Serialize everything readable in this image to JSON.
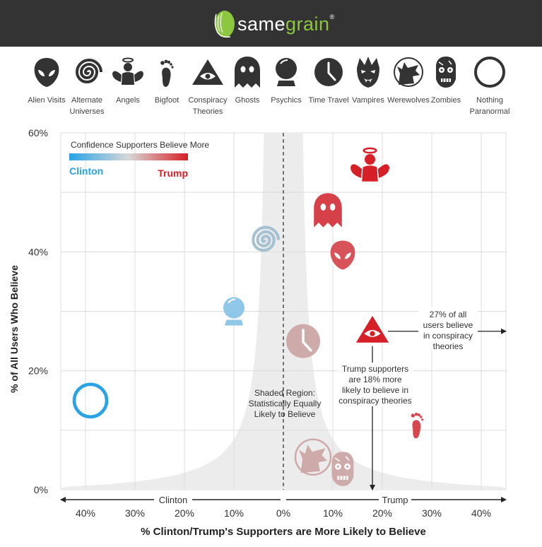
{
  "brand": {
    "same": "same",
    "grain": "grain",
    "mark": "®"
  },
  "colors": {
    "clinton": "#29a3e6",
    "trump": "#d61f26",
    "neutral": "#c9b4b4",
    "header": "#333333",
    "logo_green": "#8dc63f"
  },
  "legend": [
    {
      "label": [
        "Alien Visits"
      ],
      "icon": "alien-icon"
    },
    {
      "label": [
        "Alternate",
        "Universes"
      ],
      "icon": "spiral-icon"
    },
    {
      "label": [
        "Angels"
      ],
      "icon": "angel-icon"
    },
    {
      "label": [
        "Bigfoot"
      ],
      "icon": "footprint-icon"
    },
    {
      "label": [
        "Conspiracy",
        "Theories"
      ],
      "icon": "eye-pyramid-icon"
    },
    {
      "label": [
        "Ghosts"
      ],
      "icon": "ghost-icon"
    },
    {
      "label": [
        "Psychics"
      ],
      "icon": "crystal-ball-icon"
    },
    {
      "label": [
        "Time Travel"
      ],
      "icon": "clock-icon"
    },
    {
      "label": [
        "Vampires"
      ],
      "icon": "vampire-icon"
    },
    {
      "label": [
        "Werewolves"
      ],
      "icon": "werewolf-icon"
    },
    {
      "label": [
        "Zombies"
      ],
      "icon": "zombie-icon"
    },
    {
      "label": [
        "Nothing",
        "Paranormal"
      ],
      "icon": "ring-icon"
    }
  ],
  "chart_data": {
    "type": "scatter",
    "xlabel": "% Clinton/Trump's Supporters are More Likely to Believe",
    "ylabel": "% of All Users Who Believe",
    "xlim": [
      -45,
      45
    ],
    "ylim": [
      0,
      60
    ],
    "x_ticks": [
      "40%",
      "30%",
      "20%",
      "10%",
      "0%",
      "10%",
      "20%",
      "30%",
      "40%"
    ],
    "x_tick_values": [
      -40,
      -30,
      -20,
      -10,
      0,
      10,
      20,
      30,
      40
    ],
    "y_ticks": [
      "0%",
      "20%",
      "40%",
      "60%"
    ],
    "y_tick_values": [
      0,
      20,
      40,
      60
    ],
    "grid": true,
    "clinton_side_label": "Clinton",
    "trump_side_label": "Trump",
    "color_legend": {
      "title": "Confidence Supporters Believe More",
      "left": "Clinton",
      "right": "Trump",
      "placement": "top-left"
    },
    "points": [
      {
        "name": "Angels",
        "x": 17.5,
        "y": 54.5,
        "color": "#d61f26",
        "icon": "angel-icon"
      },
      {
        "name": "Ghosts",
        "x": 9,
        "y": 47,
        "color": "#d64048",
        "icon": "ghost-icon"
      },
      {
        "name": "Alien Visits",
        "x": 12,
        "y": 39.5,
        "color": "#d8525a",
        "icon": "alien-icon"
      },
      {
        "name": "Alternate Universes",
        "x": -4,
        "y": 42,
        "color": "#a6c2d2",
        "icon": "spiral-icon"
      },
      {
        "name": "Psychics",
        "x": -10,
        "y": 30,
        "color": "#8fc7e8",
        "icon": "crystal-ball-icon"
      },
      {
        "name": "Time Travel",
        "x": 4,
        "y": 25,
        "color": "#cfaaaa",
        "icon": "clock-icon"
      },
      {
        "name": "Conspiracy Theories",
        "x": 18,
        "y": 27,
        "color": "#d61f26",
        "icon": "eye-pyramid-icon"
      },
      {
        "name": "Bigfoot",
        "x": 27,
        "y": 11,
        "color": "#d6474e",
        "icon": "footprint-icon"
      },
      {
        "name": "Werewolves",
        "x": 6,
        "y": 5.5,
        "color": "#cfaaaa",
        "icon": "werewolf-icon"
      },
      {
        "name": "Zombies",
        "x": 12,
        "y": 3.5,
        "color": "#cfaaaa",
        "icon": "zombie-icon"
      },
      {
        "name": "Nothing Paranormal",
        "x": -39,
        "y": 15,
        "color": "#29a3e6",
        "icon": "ring-icon"
      }
    ],
    "annotations": {
      "shaded": [
        "Shaded Region:",
        "Statistically Equally",
        "Likely to Believe"
      ],
      "conspiracy_x": [
        "Trump supporters",
        "are 18% more",
        "likely to believe in",
        "conspiracy theories"
      ],
      "conspiracy_y": [
        "27% of all",
        "users believe",
        "in conspiracy",
        "theories"
      ]
    }
  }
}
